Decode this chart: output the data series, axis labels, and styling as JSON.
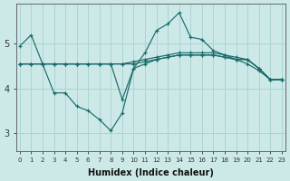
{
  "title": "",
  "xlabel": "Humidex (Indice chaleur)",
  "ylabel": "",
  "bg_color": "#cce9e8",
  "grid_color": "#aad4d3",
  "line_color": "#1a6b6b",
  "x_ticks": [
    0,
    1,
    2,
    3,
    4,
    5,
    6,
    7,
    8,
    9,
    10,
    11,
    12,
    13,
    14,
    15,
    16,
    17,
    18,
    19,
    20,
    21,
    22,
    23
  ],
  "y_ticks": [
    3,
    4,
    5
  ],
  "ylim": [
    2.6,
    5.9
  ],
  "xlim": [
    -0.3,
    23.3
  ],
  "series": [
    [
      4.95,
      5.2,
      4.55,
      3.9,
      3.9,
      3.6,
      3.5,
      3.3,
      3.05,
      3.45,
      4.45,
      4.8,
      5.3,
      5.45,
      5.7,
      5.15,
      5.1,
      4.85,
      4.75,
      4.65,
      4.55,
      4.4,
      4.2,
      4.2
    ],
    [
      4.55,
      4.55,
      4.55,
      4.55,
      4.55,
      4.55,
      4.55,
      4.55,
      4.55,
      3.75,
      4.45,
      4.55,
      4.65,
      4.7,
      4.75,
      4.75,
      4.75,
      4.75,
      4.7,
      4.65,
      4.65,
      4.45,
      4.2,
      4.2
    ],
    [
      4.55,
      4.55,
      4.55,
      4.55,
      4.55,
      4.55,
      4.55,
      4.55,
      4.55,
      4.55,
      4.6,
      4.65,
      4.7,
      4.75,
      4.8,
      4.8,
      4.8,
      4.8,
      4.75,
      4.7,
      4.65,
      4.45,
      4.2,
      4.2
    ],
    [
      4.55,
      4.55,
      4.55,
      4.55,
      4.55,
      4.55,
      4.55,
      4.55,
      4.55,
      4.55,
      4.55,
      4.6,
      4.65,
      4.7,
      4.75,
      4.75,
      4.75,
      4.75,
      4.7,
      4.65,
      4.65,
      4.45,
      4.2,
      4.2
    ]
  ]
}
